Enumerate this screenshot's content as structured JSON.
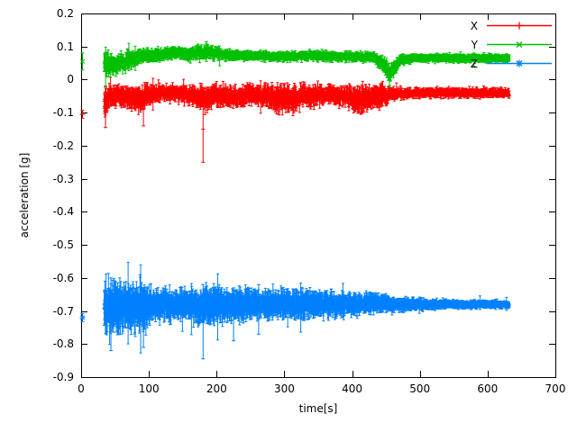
{
  "chart_data": {
    "type": "scatter",
    "style": "points-with-errorbars",
    "title": "",
    "xlabel": "time[s]",
    "ylabel": "acceleration [g]",
    "xlim": [
      0,
      700
    ],
    "ylim": [
      -0.9,
      0.2
    ],
    "xticks": [
      0,
      100,
      200,
      300,
      400,
      500,
      600,
      700
    ],
    "xtick_labels": [
      "0",
      "100",
      "200",
      "300",
      "400",
      "500",
      "600",
      "700"
    ],
    "yticks": [
      0.2,
      0.1,
      0,
      -0.1,
      -0.2,
      -0.3,
      -0.4,
      -0.5,
      -0.6,
      -0.7,
      -0.8,
      -0.9
    ],
    "ytick_labels": [
      "0.2",
      "0.1",
      "0",
      "-0.1",
      "-0.2",
      "-0.3",
      "-0.4",
      "-0.5",
      "-0.6",
      "-0.7",
      "-0.8",
      "-0.9"
    ],
    "grid": false,
    "background": "#ffffff",
    "axis_color": "#000000",
    "legend": {
      "position": "top-right",
      "entries": [
        "X",
        "Y",
        "Z"
      ]
    },
    "series": [
      {
        "name": "X",
        "color": "#ff0000",
        "marker": "plus",
        "summary": "noisy band around -0.05 g from t=35s to t=632s, tightens after t=460s, outlier bar to -0.25 near t=180s",
        "t_start": 34,
        "t_end": 632,
        "t_step": 0.35,
        "band_profile": [
          [
            34,
            -0.07,
            0.05,
            0.02
          ],
          [
            42,
            -0.05,
            0.032,
            0.018
          ],
          [
            60,
            -0.045,
            0.025,
            0.015
          ],
          [
            85,
            -0.06,
            0.035,
            0.02
          ],
          [
            95,
            -0.05,
            0.03,
            0.018
          ],
          [
            115,
            -0.04,
            0.018,
            0.012
          ],
          [
            150,
            -0.042,
            0.02,
            0.012
          ],
          [
            172,
            -0.05,
            0.028,
            0.016
          ],
          [
            182,
            -0.06,
            0.035,
            0.02
          ],
          [
            195,
            -0.05,
            0.03,
            0.018
          ],
          [
            225,
            -0.052,
            0.032,
            0.018
          ],
          [
            255,
            -0.045,
            0.025,
            0.015
          ],
          [
            282,
            -0.055,
            0.035,
            0.02
          ],
          [
            310,
            -0.062,
            0.04,
            0.02
          ],
          [
            322,
            -0.05,
            0.03,
            0.016
          ],
          [
            345,
            -0.05,
            0.03,
            0.016
          ],
          [
            368,
            -0.045,
            0.022,
            0.014
          ],
          [
            392,
            -0.05,
            0.03,
            0.016
          ],
          [
            413,
            -0.065,
            0.042,
            0.022
          ],
          [
            428,
            -0.052,
            0.03,
            0.016
          ],
          [
            443,
            -0.05,
            0.032,
            0.018
          ],
          [
            458,
            -0.042,
            0.016,
            0.01
          ],
          [
            490,
            -0.04,
            0.013,
            0.008
          ],
          [
            632,
            -0.04,
            0.012,
            0.008
          ]
        ],
        "outliers": [
          [
            180,
            -0.25,
            -0.05
          ],
          [
            92,
            -0.14,
            -0.04
          ],
          [
            36,
            -0.145,
            -0.02
          ]
        ],
        "isolated_points": [
          [
            2,
            -0.105,
            0.012
          ]
        ]
      },
      {
        "name": "Y",
        "color": "#00c000",
        "marker": "cross",
        "summary": "noisy band around +0.07 g from t=35s to t=632s, rises from 0.05 to 0.08, sharp dip to -0.02 near t=455s, lone point at t=0 y=0.055",
        "t_start": 34,
        "t_end": 632,
        "t_step": 0.35,
        "band_profile": [
          [
            34,
            0.05,
            0.045,
            0.02
          ],
          [
            44,
            0.045,
            0.03,
            0.015
          ],
          [
            58,
            0.05,
            0.028,
            0.014
          ],
          [
            72,
            0.06,
            0.024,
            0.013
          ],
          [
            88,
            0.07,
            0.02,
            0.012
          ],
          [
            115,
            0.075,
            0.015,
            0.01
          ],
          [
            138,
            0.082,
            0.014,
            0.009
          ],
          [
            158,
            0.076,
            0.015,
            0.01
          ],
          [
            178,
            0.082,
            0.018,
            0.012
          ],
          [
            190,
            0.085,
            0.018,
            0.011
          ],
          [
            212,
            0.075,
            0.014,
            0.009
          ],
          [
            248,
            0.072,
            0.012,
            0.008
          ],
          [
            300,
            0.07,
            0.012,
            0.008
          ],
          [
            352,
            0.072,
            0.012,
            0.008
          ],
          [
            400,
            0.07,
            0.012,
            0.008
          ],
          [
            432,
            0.068,
            0.012,
            0.008
          ],
          [
            446,
            0.048,
            0.02,
            0.012
          ],
          [
            456,
            0.015,
            0.024,
            0.014
          ],
          [
            463,
            0.04,
            0.02,
            0.012
          ],
          [
            472,
            0.06,
            0.012,
            0.008
          ],
          [
            500,
            0.065,
            0.01,
            0.007
          ],
          [
            632,
            0.065,
            0.01,
            0.007
          ]
        ],
        "outliers": [
          [
            185,
            0.055,
            0.115
          ],
          [
            455,
            -0.02,
            0.05
          ]
        ],
        "isolated_points": [
          [
            2,
            0.055,
            0.026
          ]
        ]
      },
      {
        "name": "Z",
        "color": "#0080ff",
        "marker": "star",
        "summary": "noisy band around -0.68 g from t=35s to t=632s with large error bars early (down to -0.82) shrinking over time, lone point at t=0 y=-0.72",
        "t_start": 34,
        "t_end": 632,
        "t_step": 0.35,
        "band_profile": [
          [
            34,
            -0.7,
            0.06,
            0.05
          ],
          [
            48,
            -0.69,
            0.05,
            0.045
          ],
          [
            68,
            -0.685,
            0.045,
            0.04
          ],
          [
            90,
            -0.69,
            0.05,
            0.045
          ],
          [
            108,
            -0.68,
            0.032,
            0.026
          ],
          [
            140,
            -0.68,
            0.03,
            0.025
          ],
          [
            168,
            -0.68,
            0.036,
            0.03
          ],
          [
            182,
            -0.685,
            0.04,
            0.034
          ],
          [
            205,
            -0.68,
            0.035,
            0.03
          ],
          [
            228,
            -0.682,
            0.036,
            0.03
          ],
          [
            258,
            -0.68,
            0.03,
            0.026
          ],
          [
            290,
            -0.68,
            0.03,
            0.025
          ],
          [
            318,
            -0.68,
            0.032,
            0.027
          ],
          [
            348,
            -0.68,
            0.028,
            0.022
          ],
          [
            380,
            -0.68,
            0.026,
            0.02
          ],
          [
            410,
            -0.678,
            0.025,
            0.02
          ],
          [
            432,
            -0.675,
            0.022,
            0.018
          ],
          [
            458,
            -0.68,
            0.016,
            0.013
          ],
          [
            495,
            -0.68,
            0.013,
            0.01
          ],
          [
            545,
            -0.68,
            0.01,
            0.008
          ],
          [
            632,
            -0.68,
            0.008,
            0.006
          ]
        ],
        "outliers": [
          [
            44,
            -0.82,
            -0.6
          ],
          [
            92,
            -0.81,
            -0.63
          ],
          [
            180,
            -0.845,
            -0.62
          ],
          [
            225,
            -0.79,
            -0.63
          ],
          [
            262,
            -0.77,
            -0.62
          ]
        ],
        "isolated_points": [
          [
            2,
            -0.72,
            0.012
          ]
        ]
      }
    ]
  }
}
